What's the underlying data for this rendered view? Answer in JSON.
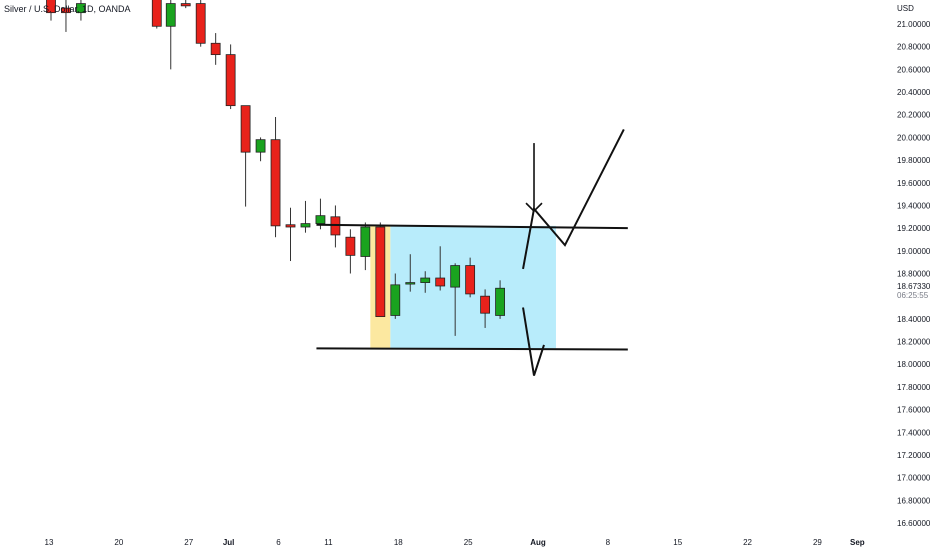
{
  "header": {
    "symbol_title": "Silver / U.S. Dollar, 1D, OANDA"
  },
  "chart_data": {
    "type": "candlestick",
    "title": "Silver / U.S. Dollar, 1D, OANDA",
    "currency_label": "USD",
    "ylim": [
      16.55,
      21.35
    ],
    "y_ticks": [
      "21.00000",
      "20.80000",
      "20.60000",
      "20.40000",
      "20.20000",
      "20.00000",
      "19.80000",
      "19.60000",
      "19.40000",
      "19.20000",
      "19.00000",
      "18.80000",
      "18.40000",
      "18.20000",
      "18.00000",
      "17.80000",
      "17.60000",
      "17.40000",
      "17.20000",
      "17.00000",
      "16.80000",
      "16.60000"
    ],
    "last_price": "18.67330",
    "countdown": "06:25:55",
    "x_ticks": [
      {
        "label": "13",
        "day": 13
      },
      {
        "label": "20",
        "day": 20
      },
      {
        "label": "27",
        "day": 27
      },
      {
        "label": "Jul",
        "day": 31
      },
      {
        "label": "6",
        "day": 36
      },
      {
        "label": "11",
        "day": 41
      },
      {
        "label": "18",
        "day": 48
      },
      {
        "label": "25",
        "day": 55
      },
      {
        "label": "Aug",
        "day": 62
      },
      {
        "label": "8",
        "day": 69
      },
      {
        "label": "15",
        "day": 76
      },
      {
        "label": "22",
        "day": 83
      },
      {
        "label": "29",
        "day": 90
      },
      {
        "label": "Sep",
        "day": 94
      }
    ],
    "candles": [
      {
        "day": 13.2,
        "o": 21.3,
        "h": 21.45,
        "l": 21.03,
        "c": 21.1
      },
      {
        "day": 14.7,
        "o": 21.14,
        "h": 21.28,
        "l": 20.93,
        "c": 21.1
      },
      {
        "day": 16.2,
        "o": 21.1,
        "h": 21.25,
        "l": 21.03,
        "c": 21.18
      },
      {
        "day": 23.8,
        "o": 21.4,
        "h": 21.45,
        "l": 20.96,
        "c": 20.98
      },
      {
        "day": 25.2,
        "o": 20.98,
        "h": 21.3,
        "l": 20.6,
        "c": 21.18
      },
      {
        "day": 26.7,
        "o": 21.18,
        "h": 21.25,
        "l": 21.14,
        "c": 21.16
      },
      {
        "day": 28.2,
        "o": 21.18,
        "h": 21.24,
        "l": 20.8,
        "c": 20.83
      },
      {
        "day": 29.7,
        "o": 20.83,
        "h": 20.92,
        "l": 20.64,
        "c": 20.73
      },
      {
        "day": 31.2,
        "o": 20.73,
        "h": 20.82,
        "l": 20.25,
        "c": 20.28
      },
      {
        "day": 32.7,
        "o": 20.28,
        "h": 20.28,
        "l": 19.39,
        "c": 19.87
      },
      {
        "day": 34.2,
        "o": 19.87,
        "h": 20.0,
        "l": 19.79,
        "c": 19.98
      },
      {
        "day": 35.7,
        "o": 19.98,
        "h": 20.18,
        "l": 19.12,
        "c": 19.22
      },
      {
        "day": 37.2,
        "o": 19.23,
        "h": 19.38,
        "l": 18.91,
        "c": 19.21
      },
      {
        "day": 38.7,
        "o": 19.21,
        "h": 19.44,
        "l": 19.16,
        "c": 19.24
      },
      {
        "day": 40.2,
        "o": 19.24,
        "h": 19.46,
        "l": 19.19,
        "c": 19.31
      },
      {
        "day": 41.7,
        "o": 19.3,
        "h": 19.4,
        "l": 19.03,
        "c": 19.14
      },
      {
        "day": 43.2,
        "o": 19.12,
        "h": 19.19,
        "l": 18.8,
        "c": 18.96
      },
      {
        "day": 44.7,
        "o": 18.95,
        "h": 19.25,
        "l": 18.83,
        "c": 19.21
      },
      {
        "day": 46.2,
        "o": 19.21,
        "h": 19.25,
        "l": 18.42,
        "c": 18.42
      },
      {
        "day": 47.7,
        "o": 18.43,
        "h": 18.8,
        "l": 18.4,
        "c": 18.7
      },
      {
        "day": 49.2,
        "o": 18.72,
        "h": 18.97,
        "l": 18.64,
        "c": 18.72
      },
      {
        "day": 50.7,
        "o": 18.72,
        "h": 18.82,
        "l": 18.63,
        "c": 18.76
      },
      {
        "day": 52.2,
        "o": 18.76,
        "h": 19.04,
        "l": 18.65,
        "c": 18.69
      },
      {
        "day": 53.7,
        "o": 18.68,
        "h": 18.89,
        "l": 18.25,
        "c": 18.87
      },
      {
        "day": 55.2,
        "o": 18.87,
        "h": 18.94,
        "l": 18.59,
        "c": 18.62
      },
      {
        "day": 56.7,
        "o": 18.6,
        "h": 18.66,
        "l": 18.32,
        "c": 18.45
      },
      {
        "day": 58.2,
        "o": 18.43,
        "h": 18.74,
        "l": 18.4,
        "c": 18.67
      }
    ],
    "annotations": {
      "resistance_line": [
        {
          "day": 39.8,
          "price": 19.23
        },
        {
          "day": 71.0,
          "price": 19.2
        }
      ],
      "support_line": [
        {
          "day": 39.8,
          "price": 18.14
        },
        {
          "day": 71.0,
          "price": 18.13
        }
      ],
      "yellow_zone": {
        "day_from": 45.2,
        "day_to": 47.2,
        "price_top": 19.22,
        "price_bottom": 18.13
      },
      "blue_zone": {
        "day_from": 47.2,
        "day_to": 63.8,
        "price_top": 19.22,
        "price_bottom": 18.14
      },
      "down_arrow": {
        "day": 61.6,
        "price_top": 19.95,
        "price_tip": 19.35
      },
      "bullish_path": [
        {
          "day": 60.5,
          "price": 18.84
        },
        {
          "day": 61.6,
          "price": 19.37
        },
        {
          "day": 64.7,
          "price": 19.05
        },
        {
          "day": 70.6,
          "price": 20.07
        }
      ],
      "bearish_path": [
        {
          "day": 60.5,
          "price": 18.5
        },
        {
          "day": 61.6,
          "price": 17.9
        },
        {
          "day": 62.6,
          "price": 18.17
        }
      ]
    },
    "colors": {
      "up": "#1aa31f",
      "down": "#e8221b",
      "wick": "#333333",
      "yellow_zone": "#fce8a0",
      "blue_zone": "#b8ecfb",
      "lines": "#111111",
      "axis_text": "#131722"
    }
  }
}
